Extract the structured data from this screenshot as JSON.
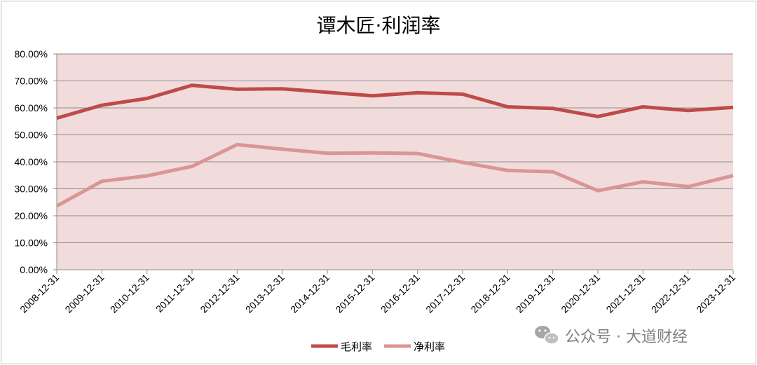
{
  "chart_data": {
    "type": "line",
    "title": "谭木匠·利润率",
    "categories": [
      "2008-12-31",
      "2009-12-31",
      "2010-12-31",
      "2011-12-31",
      "2012-12-31",
      "2013-12-31",
      "2014-12-31",
      "2015-12-31",
      "2016-12-31",
      "2017-12-31",
      "2018-12-31",
      "2019-12-31",
      "2020-12-31",
      "2021-12-31",
      "2022-12-31",
      "2023-12-31"
    ],
    "y_tick_labels": [
      "0.00%",
      "10.00%",
      "20.00%",
      "30.00%",
      "40.00%",
      "50.00%",
      "60.00%",
      "70.00%",
      "80.00%"
    ],
    "ylim": [
      0,
      80
    ],
    "grid": true,
    "legend_position": "bottom",
    "series": [
      {
        "name": "毛利率",
        "color": "#be4b48",
        "values": [
          56.2,
          61.0,
          63.5,
          68.4,
          66.9,
          67.1,
          65.8,
          64.5,
          65.6,
          65.1,
          60.4,
          59.8,
          56.8,
          60.4,
          59.0,
          60.2
        ]
      },
      {
        "name": "净利率",
        "color": "#d99694",
        "values": [
          23.6,
          32.8,
          34.8,
          38.3,
          46.4,
          44.7,
          43.2,
          43.3,
          43.1,
          39.8,
          36.8,
          36.3,
          29.3,
          32.6,
          30.8,
          34.9
        ]
      }
    ],
    "plot_background": "#f2dcdb"
  },
  "watermark": {
    "text": "公众号 · 大道财经",
    "icon": "wechat-icon"
  }
}
